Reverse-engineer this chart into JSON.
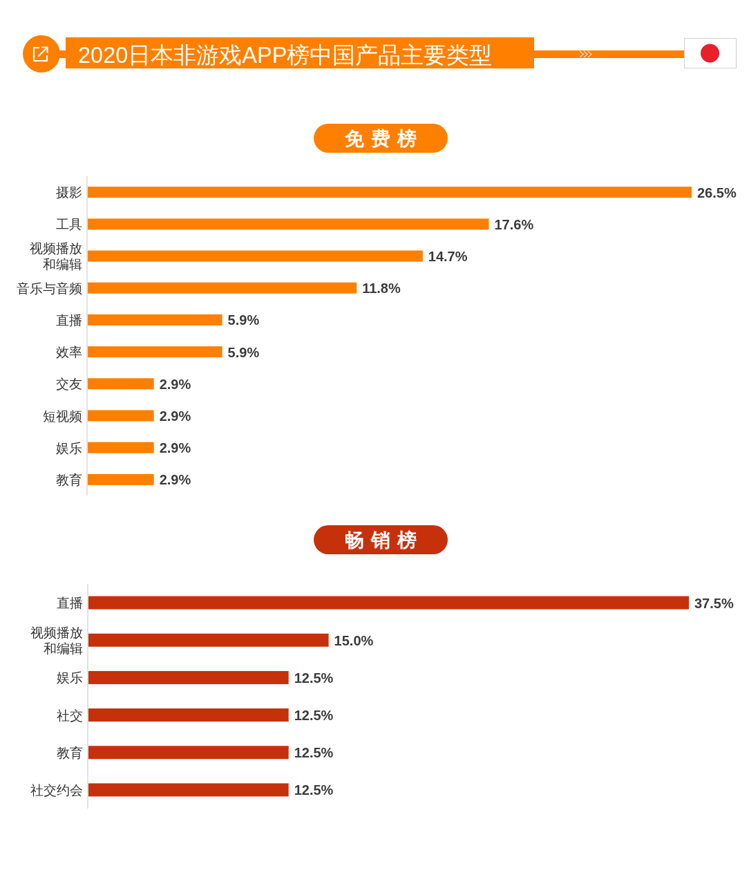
{
  "chart_data": [
    {
      "type": "bar",
      "orientation": "horizontal",
      "title": "2020日本非游戏APP榜中国产品主要类型",
      "subtitle": "免费榜",
      "categories": [
        "摄影",
        "工具",
        "视频播放和编辑",
        "音乐与音频",
        "直播",
        "效率",
        "交友",
        "短视频",
        "娱乐",
        "教育"
      ],
      "values": [
        26.5,
        17.6,
        14.7,
        11.8,
        5.9,
        5.9,
        2.9,
        2.9,
        2.9,
        2.9
      ],
      "value_labels": [
        "26.5%",
        "17.6%",
        "14.7%",
        "11.8%",
        "5.9%",
        "5.9%",
        "2.9%",
        "2.9%",
        "2.9%",
        "2.9%"
      ],
      "color": "#ff7f00",
      "tick_labels": "y"
    },
    {
      "type": "bar",
      "orientation": "horizontal",
      "title": "畅销榜",
      "categories": [
        "直播",
        "视频播放和编辑",
        "娱乐",
        "社交",
        "教育",
        "社交约会"
      ],
      "values": [
        37.5,
        15.0,
        12.5,
        12.5,
        12.5,
        12.5
      ],
      "value_labels": [
        "37.5%",
        "15.0%",
        "12.5%",
        "12.5%",
        "12.5%",
        "12.5%"
      ],
      "color": "#c6310b",
      "tick_labels": "y"
    }
  ]
}
